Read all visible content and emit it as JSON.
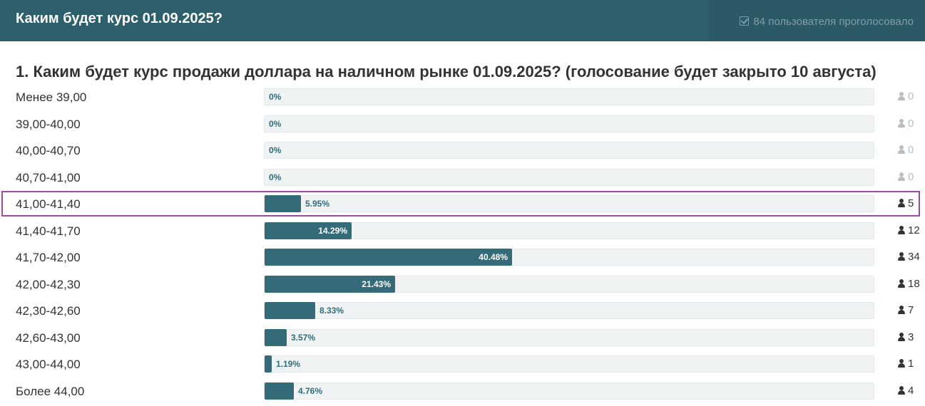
{
  "header": {
    "title": "Каким будет курс 01.09.2025?",
    "votes_text": "84 пользователя проголосовало"
  },
  "question": {
    "title": "1. Каким будет курс продажи доллара на наличном рынке 01.09.2025? (голосование будет закрыто 10 августа)"
  },
  "colors": {
    "header_bg": "#2e5f6c",
    "bar_fill": "#356b79",
    "highlight": "#9c4c9d"
  },
  "chart_data": {
    "type": "bar",
    "orientation": "horizontal",
    "categories": [
      "Менее 39,00",
      "39,00-40,00",
      "40,00-40,70",
      "40,70-41,00",
      "41,00-41,40",
      "41,40-41,70",
      "41,70-42,00",
      "42,00-42,30",
      "42,30-42,60",
      "42,60-43,00",
      "43,00-44,00",
      "Более 44,00"
    ],
    "percent_labels": [
      "0%",
      "0%",
      "0%",
      "0%",
      "5.95%",
      "14.29%",
      "40.48%",
      "21.43%",
      "8.33%",
      "3.57%",
      "1.19%",
      "4.76%"
    ],
    "values": [
      0,
      0,
      0,
      0,
      5.95,
      14.29,
      40.48,
      21.43,
      8.33,
      3.57,
      1.19,
      4.76
    ],
    "counts": [
      0,
      0,
      0,
      0,
      5,
      12,
      34,
      18,
      7,
      3,
      1,
      4
    ],
    "xlim": [
      0,
      100
    ],
    "highlighted_index": 4
  }
}
